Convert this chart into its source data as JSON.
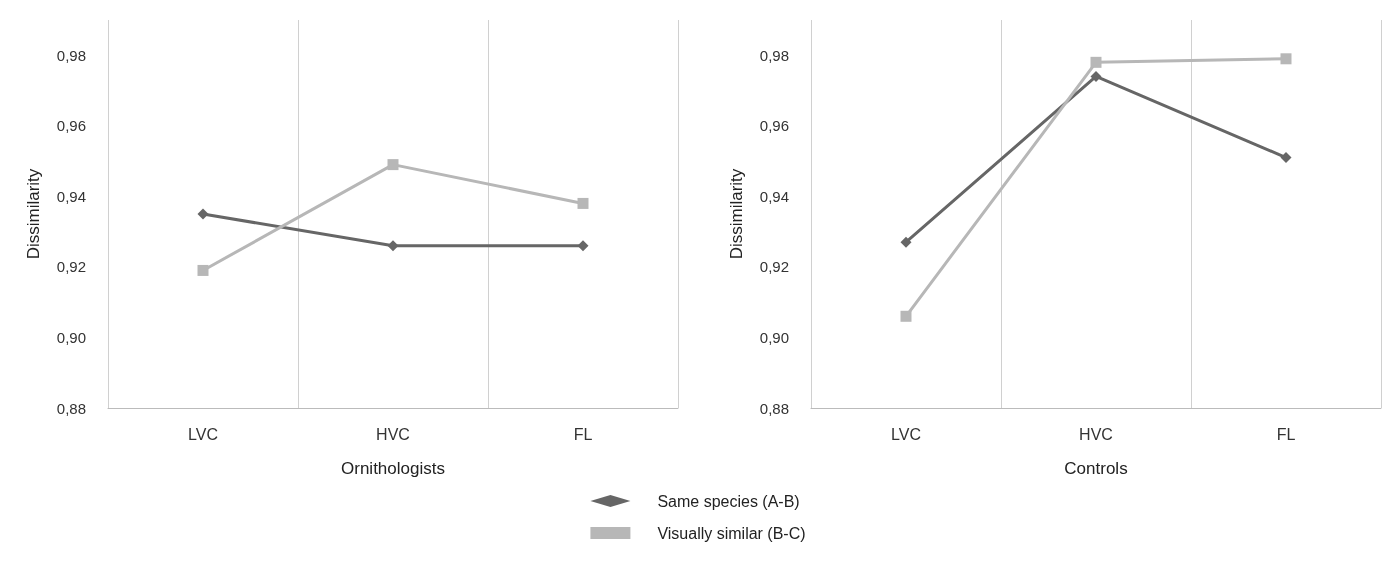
{
  "chart_data": [
    {
      "type": "line",
      "xlabel": "Ornithologists",
      "ylabel": "Dissimilarity",
      "categories": [
        "LVC",
        "HVC",
        "FL"
      ],
      "series": [
        {
          "name": "Same species (A-B)",
          "color": "#666666",
          "marker": "diamond",
          "values": [
            0.935,
            0.926,
            0.926
          ]
        },
        {
          "name": "Visually similar (B-C)",
          "color": "#b7b7b7",
          "marker": "square",
          "values": [
            0.919,
            0.949,
            0.938
          ]
        }
      ],
      "ylim": [
        0.88,
        0.99
      ],
      "yticks": [
        {
          "value": 0.88,
          "label": "0,88"
        },
        {
          "value": 0.9,
          "label": "0,90"
        },
        {
          "value": 0.92,
          "label": "0,92"
        },
        {
          "value": 0.94,
          "label": "0,94"
        },
        {
          "value": 0.96,
          "label": "0,96"
        },
        {
          "value": 0.98,
          "label": "0,98"
        }
      ],
      "grid": "x",
      "legend": "bottom"
    },
    {
      "type": "line",
      "xlabel": "Controls",
      "ylabel": "Dissimilarity",
      "categories": [
        "LVC",
        "HVC",
        "FL"
      ],
      "series": [
        {
          "color": "#666666",
          "marker": "diamond",
          "values": [
            0.927,
            0.974,
            0.951
          ]
        },
        {
          "color": "#b7b7b7",
          "marker": "square",
          "values": [
            0.906,
            0.978,
            0.979
          ]
        }
      ],
      "ylim": [
        0.88,
        0.99
      ],
      "yticks": [
        {
          "value": 0.88,
          "label": "0,88"
        },
        {
          "value": 0.9,
          "label": "0,90"
        },
        {
          "value": 0.92,
          "label": "0,92"
        },
        {
          "value": 0.94,
          "label": "0,94"
        },
        {
          "value": 0.96,
          "label": "0,96"
        },
        {
          "value": 0.98,
          "label": "0,98"
        }
      ],
      "grid": "x"
    }
  ]
}
